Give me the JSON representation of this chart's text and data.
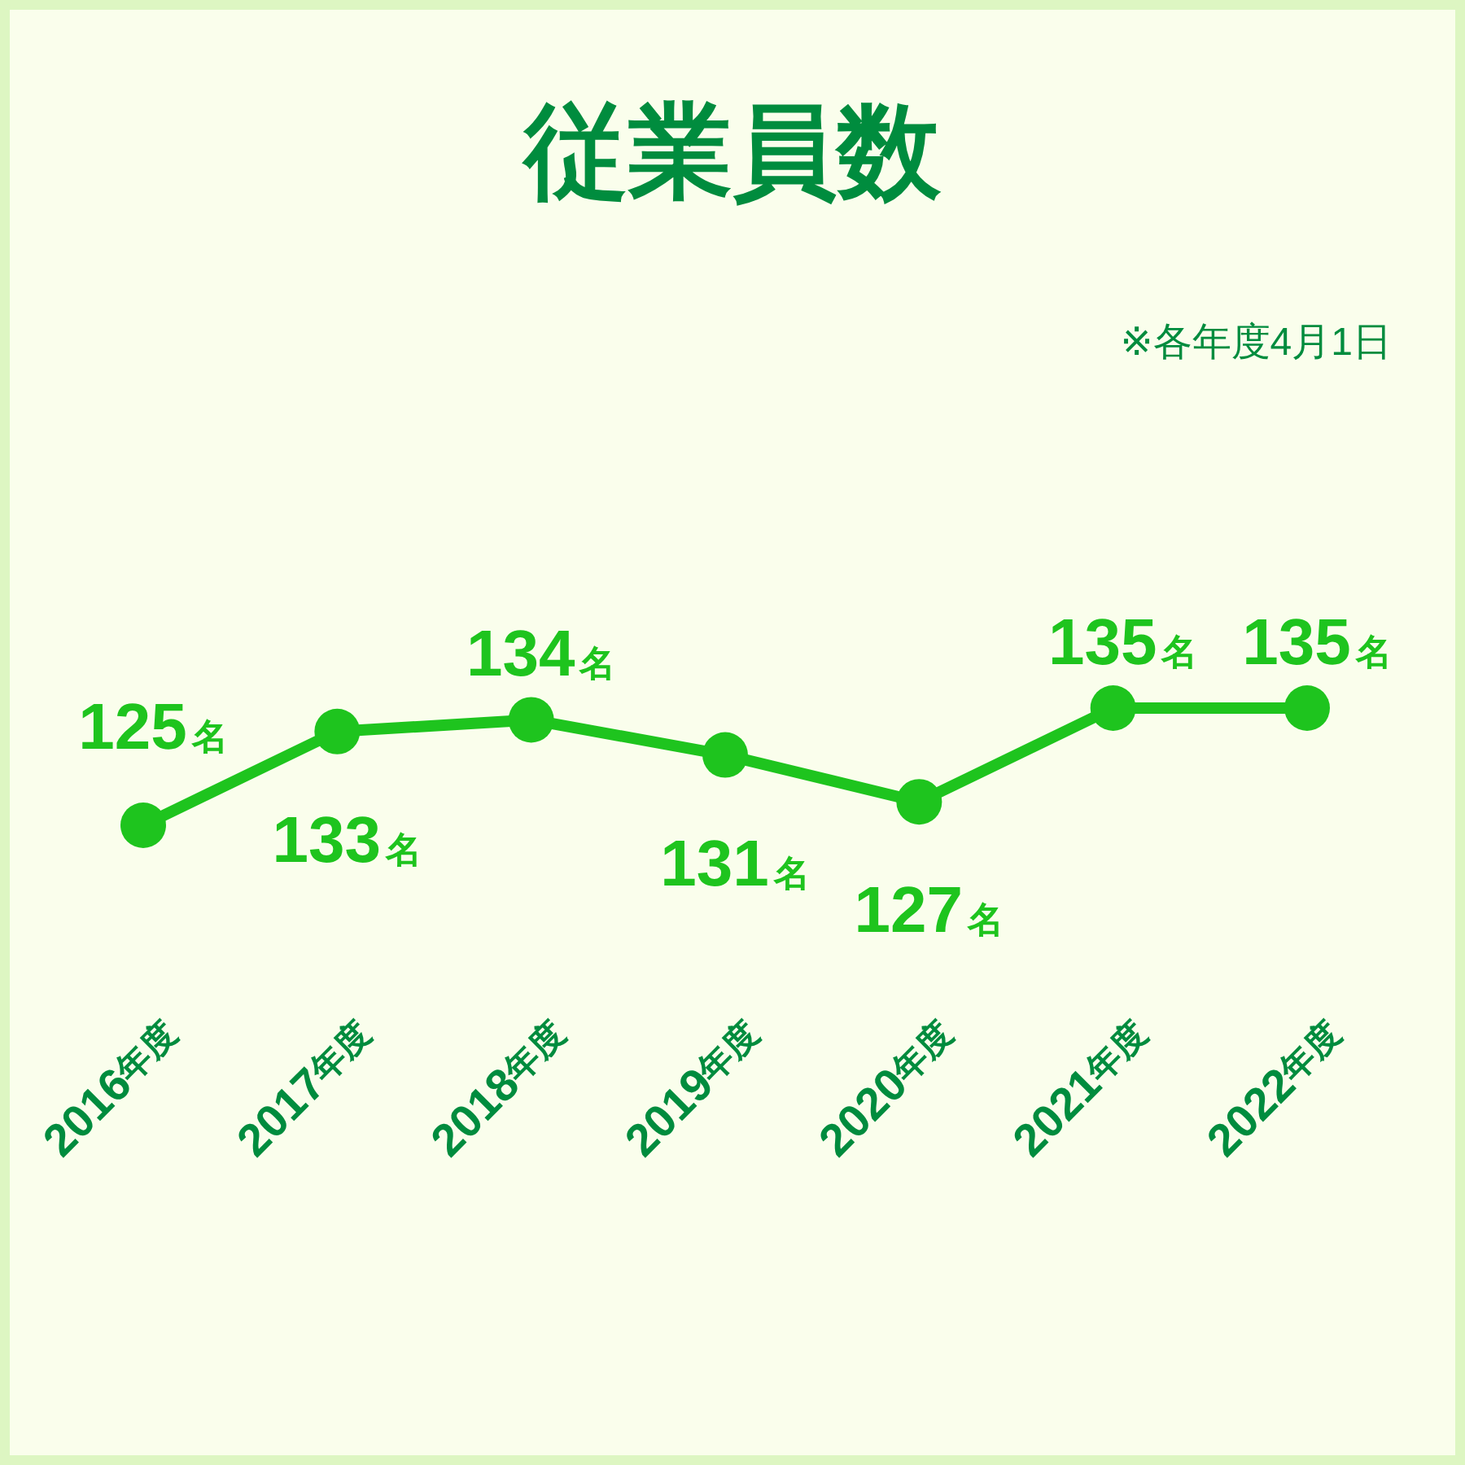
{
  "chart_data": {
    "type": "line",
    "title": "従業員数",
    "annotations": [
      "※各年度4月1日"
    ],
    "categories": [
      "2016年度",
      "2017年度",
      "2018年度",
      "2019年度",
      "2020年度",
      "2021年度",
      "2022年度"
    ],
    "series": [
      {
        "color": "#1ec41e",
        "values": [
          125,
          133,
          134,
          131,
          127,
          135,
          135
        ],
        "value_labels": [
          "125名",
          "133名",
          "134名",
          "131名",
          "127名",
          "135名",
          "135名"
        ]
      }
    ],
    "marker": "circle",
    "line_style": "solid"
  }
}
